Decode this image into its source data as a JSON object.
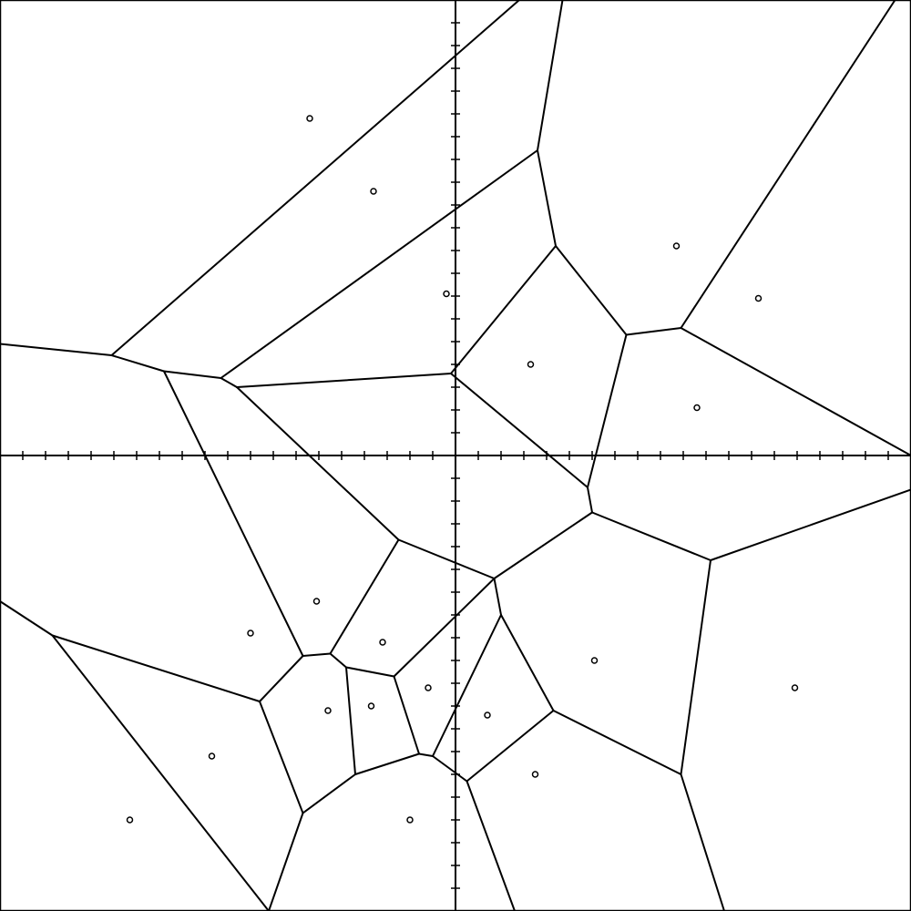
{
  "diagram": {
    "type": "voronoi",
    "colors": {
      "background": "#ffffff",
      "stroke": "#000000",
      "site_fill": "#ffffff"
    },
    "grid": false,
    "axes": {
      "visible": true,
      "tick_labels": false,
      "x_range": [
        -20,
        20
      ],
      "y_range": [
        -20,
        20
      ],
      "tick_step": 1
    },
    "sites": [
      [
        -6.4,
        14.8
      ],
      [
        -3.6,
        11.6
      ],
      [
        -0.4,
        7.1
      ],
      [
        9.7,
        9.2
      ],
      [
        13.3,
        6.9
      ],
      [
        3.3,
        4.0
      ],
      [
        10.6,
        2.1
      ],
      [
        -6.1,
        -6.4
      ],
      [
        -9.0,
        -7.8
      ],
      [
        -3.2,
        -8.2
      ],
      [
        6.1,
        -9.0
      ],
      [
        14.9,
        -10.2
      ],
      [
        -5.6,
        -11.2
      ],
      [
        -3.7,
        -11.0
      ],
      [
        -1.2,
        -10.2
      ],
      [
        1.4,
        -11.4
      ],
      [
        -10.7,
        -13.2
      ],
      [
        -14.3,
        -16.0
      ],
      [
        3.5,
        -14.0
      ],
      [
        -2.0,
        -16.0
      ]
    ],
    "edges": [
      [
        [
          -20,
          4.9
        ],
        [
          -15.1,
          4.4
        ]
      ],
      [
        [
          -15.1,
          4.4
        ],
        [
          2.8,
          20
        ]
      ],
      [
        [
          -15.1,
          4.4
        ],
        [
          -12.8,
          3.7
        ]
      ],
      [
        [
          -12.8,
          3.7
        ],
        [
          -10.3,
          3.4
        ]
      ],
      [
        [
          -10.3,
          3.4
        ],
        [
          3.6,
          13.4
        ]
      ],
      [
        [
          3.6,
          13.4
        ],
        [
          4.7,
          20
        ]
      ],
      [
        [
          -10.3,
          3.4
        ],
        [
          -9.6,
          3.0
        ]
      ],
      [
        [
          -9.6,
          3.0
        ],
        [
          -0.2,
          3.6
        ]
      ],
      [
        [
          -0.2,
          3.6
        ],
        [
          4.4,
          9.2
        ]
      ],
      [
        [
          4.4,
          9.2
        ],
        [
          3.6,
          13.4
        ]
      ],
      [
        [
          4.4,
          9.2
        ],
        [
          7.5,
          5.3
        ]
      ],
      [
        [
          7.5,
          5.3
        ],
        [
          9.9,
          5.6
        ]
      ],
      [
        [
          9.9,
          5.6
        ],
        [
          19.3,
          20
        ]
      ],
      [
        [
          9.9,
          5.6
        ],
        [
          20,
          0
        ]
      ],
      [
        [
          7.5,
          5.3
        ],
        [
          5.8,
          -1.4
        ]
      ],
      [
        [
          -0.2,
          3.6
        ],
        [
          5.8,
          -1.4
        ]
      ],
      [
        [
          5.8,
          -1.4
        ],
        [
          6.0,
          -2.5
        ]
      ],
      [
        [
          6.0,
          -2.5
        ],
        [
          11.2,
          -4.6
        ]
      ],
      [
        [
          11.2,
          -4.6
        ],
        [
          20,
          -1.5
        ]
      ],
      [
        [
          11.2,
          -4.6
        ],
        [
          9.9,
          -14.0
        ]
      ],
      [
        [
          9.9,
          -14.0
        ],
        [
          11.8,
          -20
        ]
      ],
      [
        [
          9.9,
          -14.0
        ],
        [
          4.3,
          -11.2
        ]
      ],
      [
        [
          4.3,
          -11.2
        ],
        [
          2.0,
          -7.0
        ]
      ],
      [
        [
          2.0,
          -7.0
        ],
        [
          1.7,
          -5.4
        ]
      ],
      [
        [
          1.7,
          -5.4
        ],
        [
          6.0,
          -2.5
        ]
      ],
      [
        [
          1.7,
          -5.4
        ],
        [
          -2.5,
          -3.7
        ]
      ],
      [
        [
          -2.5,
          -3.7
        ],
        [
          -9.6,
          3.0
        ]
      ],
      [
        [
          -12.8,
          3.7
        ],
        [
          -6.7,
          -8.8
        ]
      ],
      [
        [
          -6.7,
          -8.8
        ],
        [
          -5.5,
          -8.7
        ]
      ],
      [
        [
          -5.5,
          -8.7
        ],
        [
          -2.5,
          -3.7
        ]
      ],
      [
        [
          -6.7,
          -8.8
        ],
        [
          -8.6,
          -10.8
        ]
      ],
      [
        [
          -8.6,
          -10.8
        ],
        [
          -17.7,
          -7.9
        ]
      ],
      [
        [
          -17.7,
          -7.9
        ],
        [
          -20,
          -6.4
        ]
      ],
      [
        [
          -17.7,
          -7.9
        ],
        [
          -8.2,
          -20
        ]
      ],
      [
        [
          -8.6,
          -10.8
        ],
        [
          -6.7,
          -15.7
        ]
      ],
      [
        [
          -6.7,
          -15.7
        ],
        [
          -8.2,
          -20
        ]
      ],
      [
        [
          -6.7,
          -15.7
        ],
        [
          -4.4,
          -14.0
        ]
      ],
      [
        [
          -4.4,
          -14.0
        ],
        [
          -1.6,
          -13.1
        ]
      ],
      [
        [
          -1.6,
          -13.1
        ],
        [
          -2.7,
          -9.7
        ]
      ],
      [
        [
          -2.7,
          -9.7
        ],
        [
          -4.8,
          -9.3
        ]
      ],
      [
        [
          -4.8,
          -9.3
        ],
        [
          -4.4,
          -14.0
        ]
      ],
      [
        [
          -4.8,
          -9.3
        ],
        [
          -5.5,
          -8.7
        ]
      ],
      [
        [
          -2.7,
          -9.7
        ],
        [
          1.7,
          -5.4
        ]
      ],
      [
        [
          -1.6,
          -13.1
        ],
        [
          -1.0,
          -13.2
        ]
      ],
      [
        [
          -1.0,
          -13.2
        ],
        [
          2.0,
          -7.0
        ]
      ],
      [
        [
          -1.0,
          -13.2
        ],
        [
          0.5,
          -14.3
        ]
      ],
      [
        [
          0.5,
          -14.3
        ],
        [
          4.3,
          -11.2
        ]
      ],
      [
        [
          0.5,
          -14.3
        ],
        [
          2.6,
          -20
        ]
      ]
    ]
  }
}
